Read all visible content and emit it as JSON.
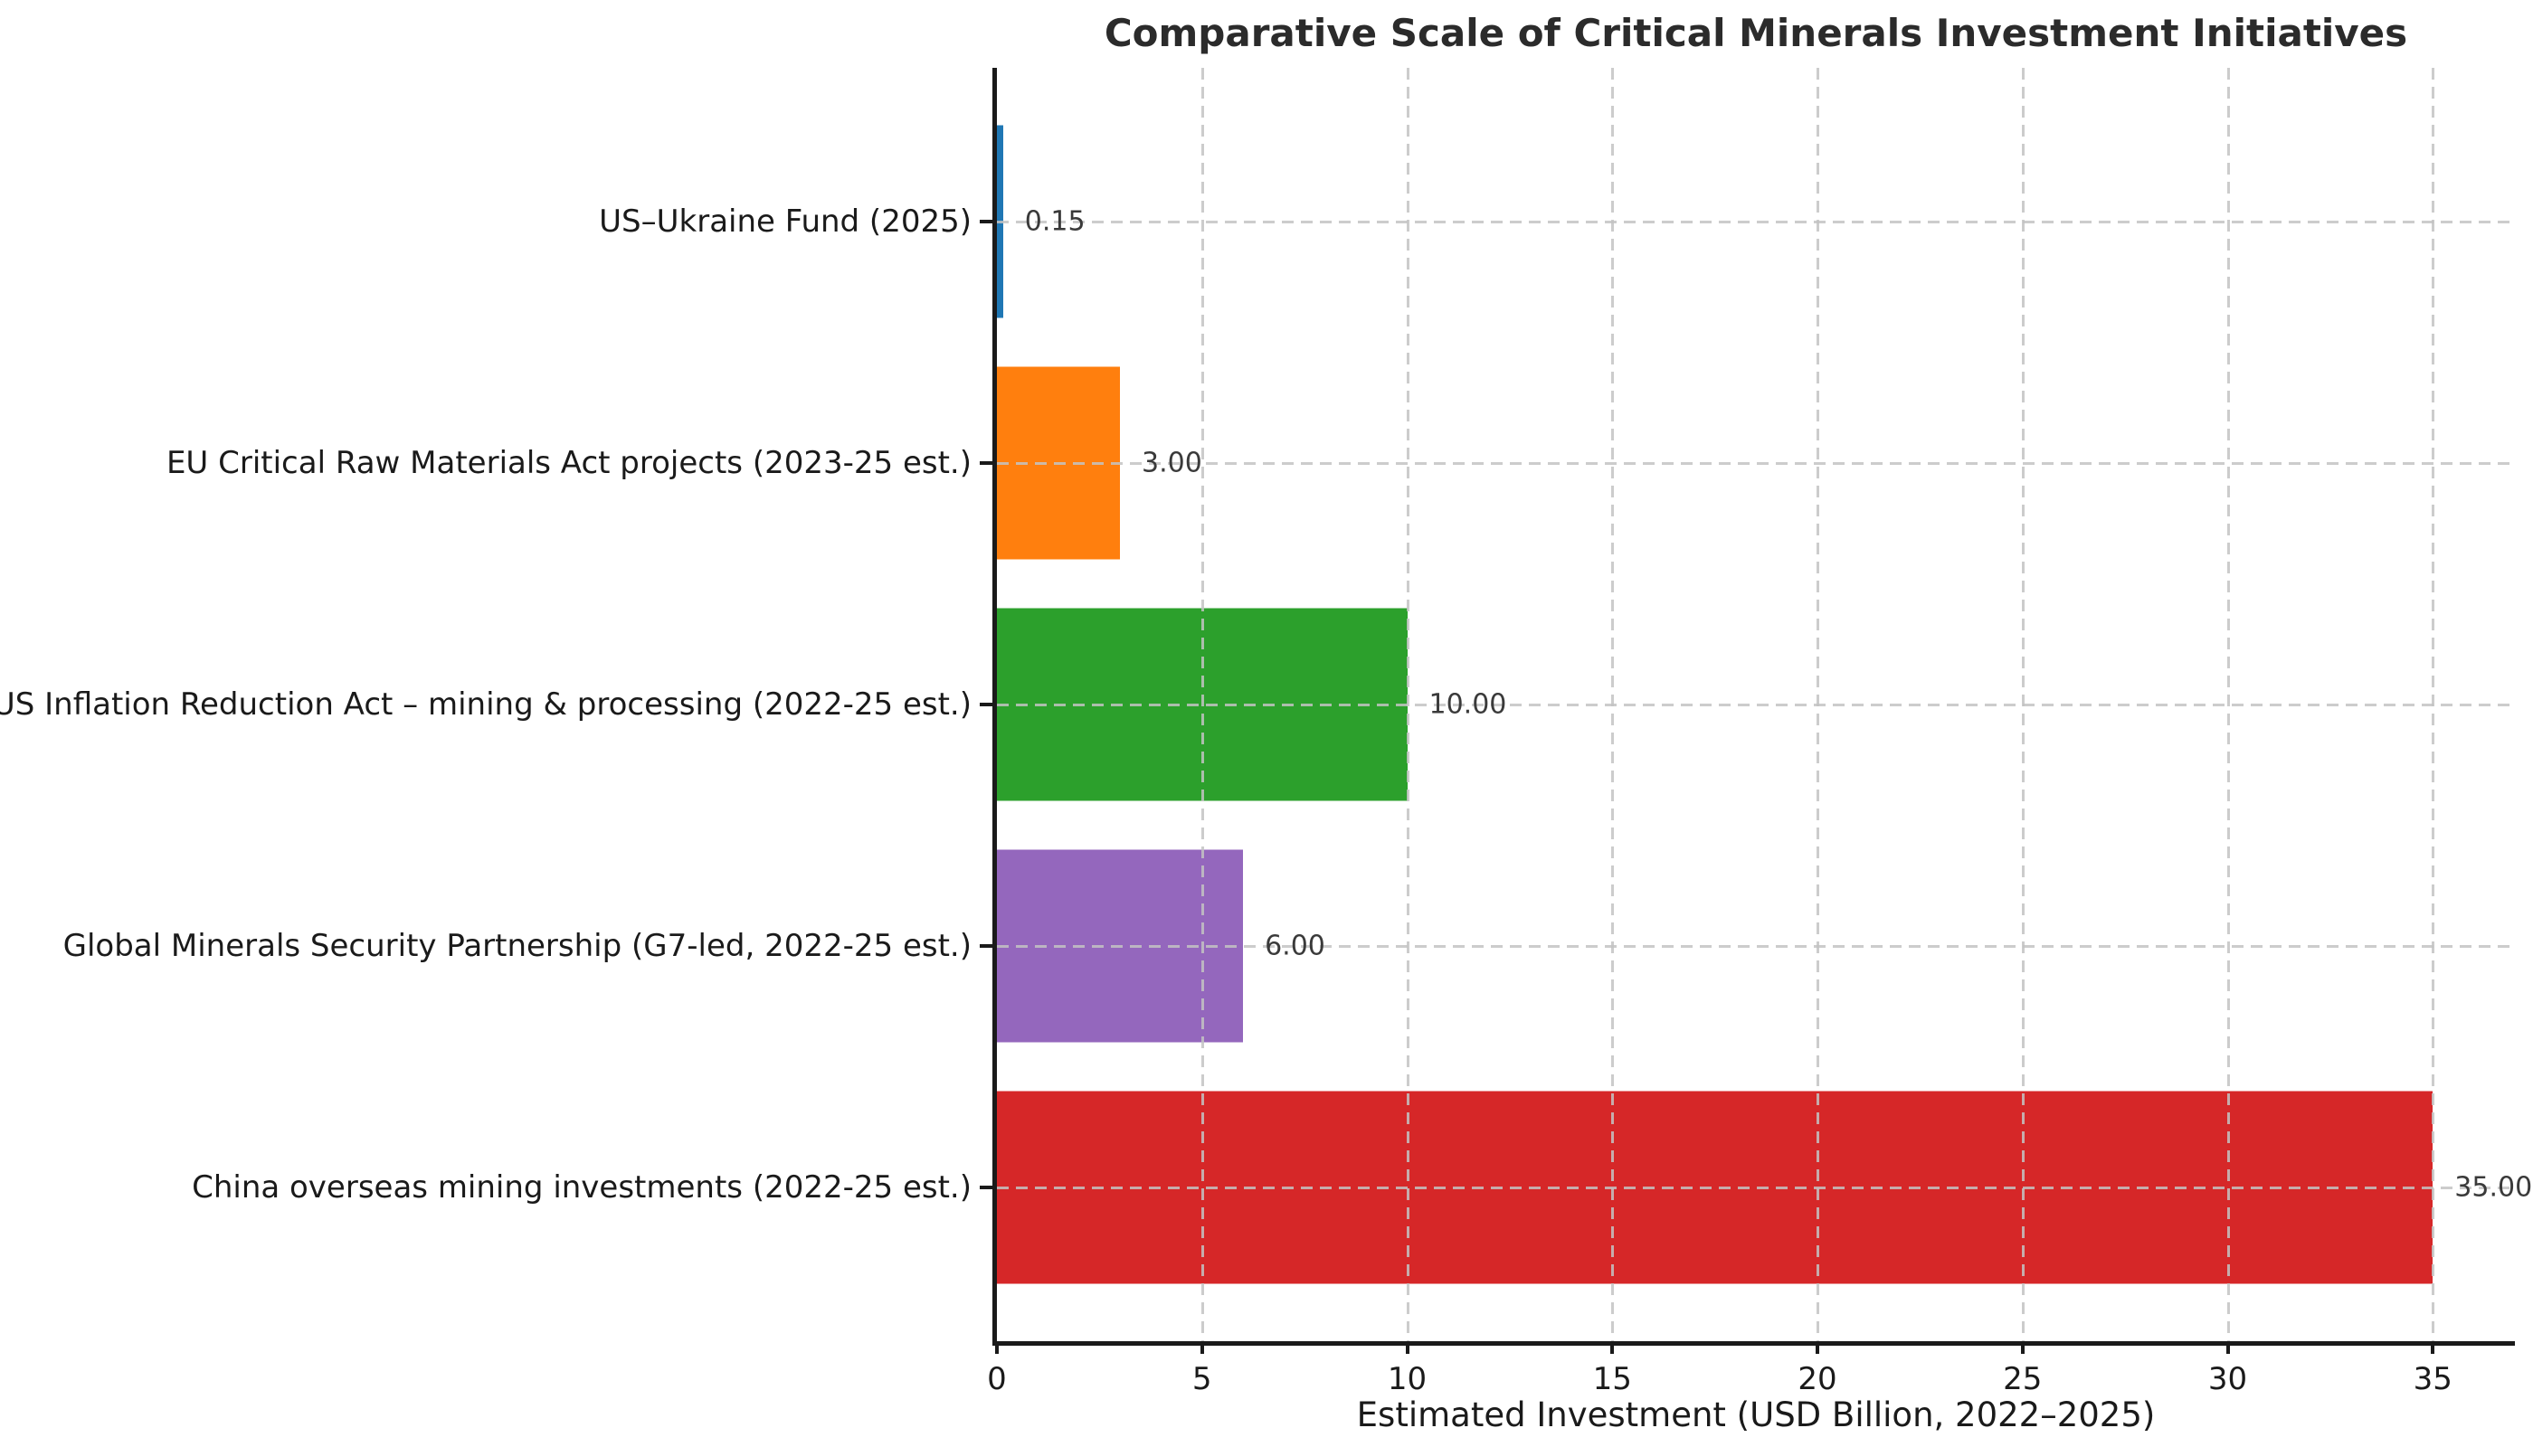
{
  "chart_data": {
    "type": "bar",
    "orientation": "horizontal",
    "title": "Comparative Scale of Critical Minerals Investment Initiatives",
    "xlabel": "Estimated Investment (USD Billion, 2022–2025)",
    "categories": [
      "US–Ukraine Fund (2025)",
      "EU Critical Raw Materials Act projects (2023-25 est.)",
      "US Inflation Reduction Act – mining & processing (2022-25 est.)",
      "Global Minerals Security Partnership (G7-led, 2022-25 est.)",
      "China overseas mining investments (2022-25 est.)"
    ],
    "values": [
      0.15,
      3.0,
      10.0,
      6.0,
      35.0
    ],
    "value_labels": [
      "0.15",
      "3.00",
      "10.00",
      "6.00",
      "35.00"
    ],
    "bar_colors": [
      "#1f77b4",
      "#ff7f0e",
      "#2ca02c",
      "#9467bd",
      "#d62728"
    ],
    "xticks": [
      0,
      5,
      10,
      15,
      20,
      25,
      30,
      35
    ],
    "xlim": [
      0,
      37
    ],
    "grid": true,
    "grid_style": "dashed",
    "legend_position": "none"
  },
  "colors": {
    "background": "#ffffff",
    "spine": "#1a1a1a",
    "grid": "#c3c3c3",
    "title_text": "#2b2b2b",
    "tick_text": "#1a1a1a",
    "value_text": "#3a3a3a"
  }
}
